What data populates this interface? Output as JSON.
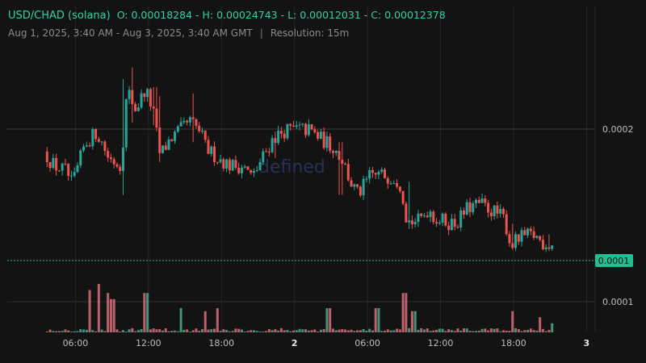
{
  "header": {
    "pair": "USD/CHAD (solana)",
    "ohlc": "O: 0.00018284 - H: 0.00024743 - L: 0.00012031 - C: 0.00012378",
    "range": "Aug 1, 2025, 3:40 AM - Aug 3, 2025, 3:40 AM GMT",
    "separator": "|",
    "resolution": "Resolution: 15m"
  },
  "watermark": "defined",
  "colors": {
    "up": "#26a69a",
    "down": "#ef5350",
    "background": "#131313",
    "grid": "#262626",
    "last_price_bg": "#1fbf8f"
  },
  "chart_data": {
    "type": "candlestick",
    "title": "USD/CHAD (solana)",
    "y_ticks": [
      {
        "value": 0.0002,
        "label": "0.0002"
      },
      {
        "value": 0.0001,
        "label": "0.0001"
      }
    ],
    "volume_tick_label": "0.0001",
    "x_ticks": [
      {
        "label": "06:00",
        "bold": false
      },
      {
        "label": "12:00",
        "bold": false
      },
      {
        "label": "18:00",
        "bold": false
      },
      {
        "label": "2",
        "bold": true
      },
      {
        "label": "06:00",
        "bold": false
      },
      {
        "label": "12:00",
        "bold": false
      },
      {
        "label": "18:00",
        "bold": false
      },
      {
        "label": "3",
        "bold": true
      }
    ],
    "last_price": 0.0001,
    "last_price_label": "0.0001",
    "anchors": [
      [
        3.67,
        0.000183
      ],
      [
        4.5,
        0.000172
      ],
      [
        5.5,
        0.000168
      ],
      [
        6.0,
        0.000157
      ],
      [
        7.0,
        0.000188
      ],
      [
        8.0,
        0.000198
      ],
      [
        9.0,
        0.000178
      ],
      [
        10.0,
        0.000172
      ],
      [
        10.5,
        0.00023
      ],
      [
        11.2,
        0.000215
      ],
      [
        12.0,
        0.00023
      ],
      [
        12.6,
        0.000215
      ],
      [
        13.2,
        0.00018
      ],
      [
        14.0,
        0.000192
      ],
      [
        15.0,
        0.0002
      ],
      [
        15.6,
        0.000206
      ],
      [
        16.5,
        0.000198
      ],
      [
        17.0,
        0.000185
      ],
      [
        18.0,
        0.000178
      ],
      [
        19.0,
        0.000172
      ],
      [
        20.0,
        0.000172
      ],
      [
        20.8,
        0.000163
      ],
      [
        21.5,
        0.000176
      ],
      [
        22.5,
        0.000193
      ],
      [
        23.5,
        0.000199
      ],
      [
        24.5,
        0.0002
      ],
      [
        25.5,
        0.000199
      ],
      [
        26.5,
        0.000192
      ],
      [
        27.5,
        0.000186
      ],
      [
        28.3,
        0.000175
      ],
      [
        28.8,
        0.00016
      ],
      [
        29.5,
        0.00015
      ],
      [
        30.5,
        0.000165
      ],
      [
        31.5,
        0.000165
      ],
      [
        32.5,
        0.000163
      ],
      [
        33.0,
        0.000158
      ],
      [
        33.5,
        0.00013
      ],
      [
        34.5,
        0.00013
      ],
      [
        35.3,
        0.00014
      ],
      [
        35.8,
        0.000132
      ],
      [
        36.5,
        0.00013
      ],
      [
        37.5,
        0.000128
      ],
      [
        38.5,
        0.00014
      ],
      [
        39.5,
        0.000143
      ],
      [
        40.5,
        0.000138
      ],
      [
        41.5,
        0.000132
      ],
      [
        42.0,
        0.000112
      ],
      [
        43.0,
        0.000118
      ],
      [
        44.0,
        0.000119
      ],
      [
        44.6,
        0.000114
      ],
      [
        45.2,
        0.000112
      ]
    ],
    "spikes": [
      [
        9.95,
        0.000238,
        0.00015
      ],
      [
        10.7,
        0.000247,
        0.000205
      ],
      [
        12.55,
        0.000232,
        0.000203
      ],
      [
        13.0,
        0.000225,
        0.000175
      ],
      [
        15.75,
        0.000227,
        0.00019
      ],
      [
        22.5,
        0.000198,
        0.000178
      ],
      [
        27.8,
        0.00019,
        0.00015
      ],
      [
        33.5,
        0.00016,
        0.000124
      ],
      [
        42.0,
        0.000128,
        0.00012
      ],
      [
        44.9,
        0.00012,
        0.00011
      ]
    ],
    "volume_max": 0.00016,
    "volume_spikes": [
      [
        7.15,
        0.00014
      ],
      [
        7.95,
        0.00016
      ],
      [
        8.8,
        0.00013
      ],
      [
        9.05,
        0.00011
      ],
      [
        11.8,
        0.00013
      ],
      [
        14.6,
        8e-05
      ],
      [
        16.6,
        7e-05
      ],
      [
        17.6,
        8e-05
      ],
      [
        26.8,
        8e-05
      ],
      [
        30.8,
        8e-05
      ],
      [
        33.05,
        0.00013
      ],
      [
        33.8,
        7e-05
      ],
      [
        41.85,
        7e-05
      ],
      [
        44.2,
        5e-05
      ],
      [
        45.1,
        3e-05
      ]
    ]
  }
}
